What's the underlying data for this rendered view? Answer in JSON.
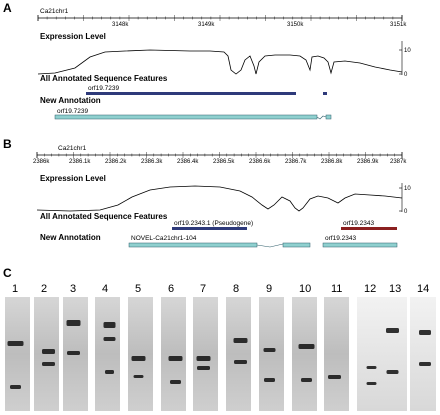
{
  "panels": {
    "A": {
      "letter": "A",
      "chromosome": "Ca21chr1",
      "ticks": [
        "3148k",
        "3149k",
        "3150k",
        "3151k"
      ],
      "expression_label": "Expression Level",
      "y_ticks": [
        "10",
        "0"
      ],
      "annotated_label": "All Annotated Sequence Features",
      "annotated_gene": "orf19.7239",
      "new_label": "New Annotation",
      "new_gene": "orf19.7239"
    },
    "B": {
      "letter": "B",
      "chromosome": "Ca21chr1",
      "ticks": [
        "2386k",
        "2386.1k",
        "2386.2k",
        "2386.3k",
        "2386.4k",
        "2386.5k",
        "2386.6k",
        "2386.7k",
        "2386.8k",
        "2386.9k",
        "2387k"
      ],
      "expression_label": "Expression Level",
      "y_ticks": [
        "10",
        "0"
      ],
      "annotated_label": "All Annotated Sequence Features",
      "annotated_gene_1": "orf19.2343.1 (Pseudogene)",
      "annotated_gene_2": "orf19.2343",
      "new_label": "New Annotation",
      "new_gene_1": "NOVEL-Ca21chr1-104",
      "new_gene_2": "orf19.2343"
    },
    "C": {
      "letter": "C",
      "lanes": [
        "1",
        "2",
        "3",
        "4",
        "5",
        "6",
        "7",
        "8",
        "9",
        "10",
        "11",
        "12",
        "13",
        "14"
      ]
    }
  },
  "colors": {
    "annotated_blue": "#2e3a7a",
    "annotated_red": "#8b2020",
    "new_annotation": "#8fd0cf"
  }
}
